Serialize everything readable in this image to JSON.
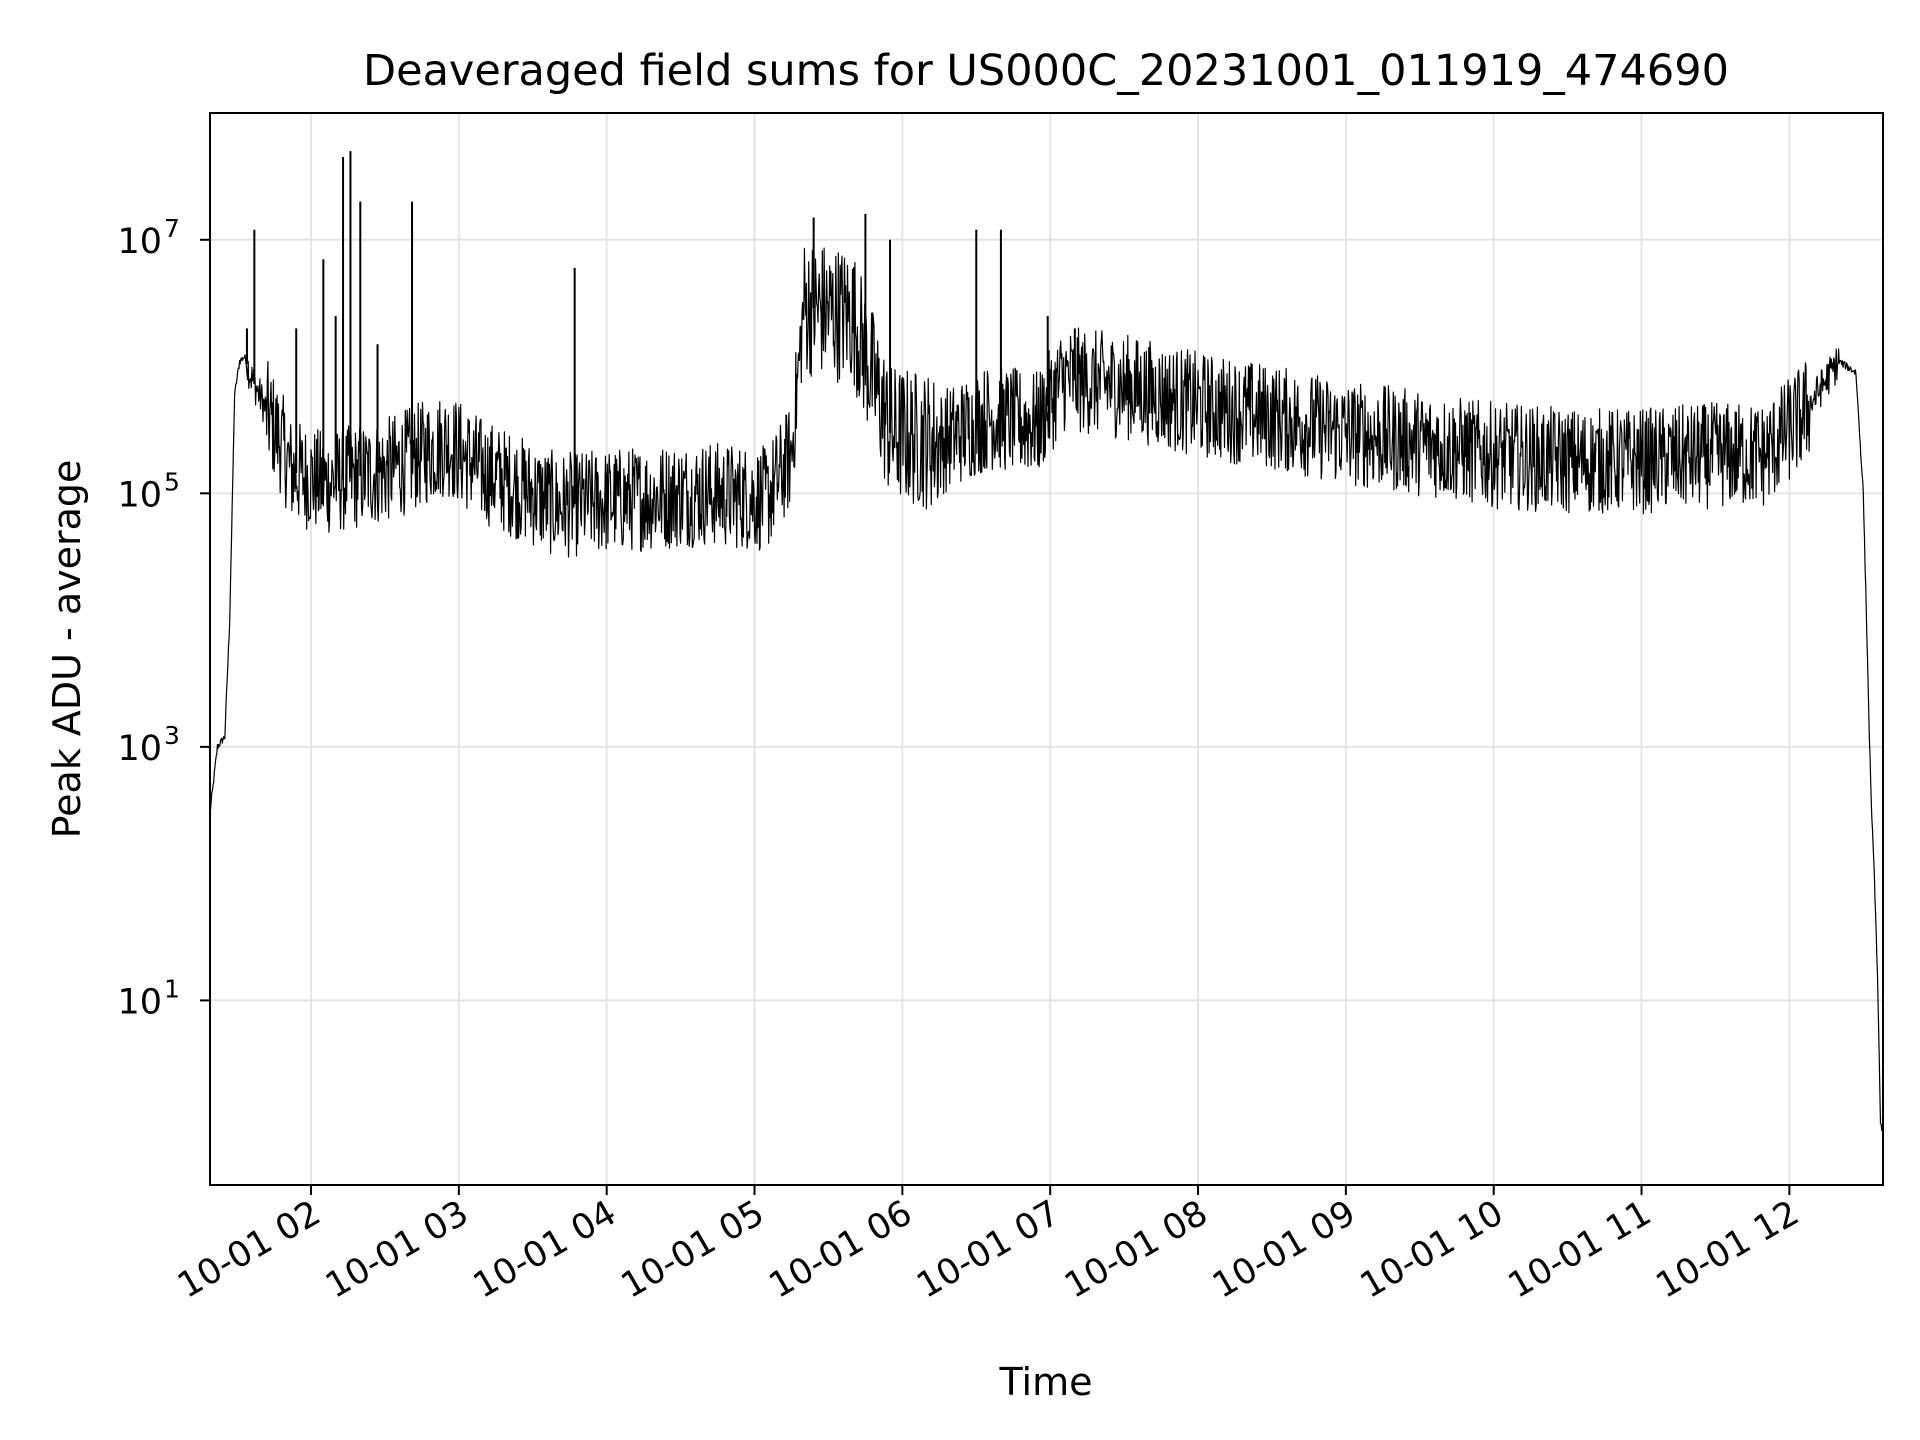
{
  "chart_data": {
    "type": "line",
    "title": "Deaveraged field sums for US000C_20231001_011919_474690",
    "xlabel": "Time",
    "ylabel": "Peak ADU - average",
    "yscale": "log",
    "xlim": [
      "2023-10-01 01:19",
      "2023-10-01 12:38"
    ],
    "ylim": [
      0.35,
      100000000
    ],
    "grid": true,
    "line_color": "#000000",
    "x_ticks": [
      "10-01 02",
      "10-01 03",
      "10-01 04",
      "10-01 05",
      "10-01 06",
      "10-01 07",
      "10-01 08",
      "10-01 09",
      "10-01 10",
      "10-01 11",
      "10-01 12"
    ],
    "x_tick_values": [
      "2023-10-01 02:00",
      "2023-10-01 03:00",
      "2023-10-01 04:00",
      "2023-10-01 05:00",
      "2023-10-01 06:00",
      "2023-10-01 07:00",
      "2023-10-01 08:00",
      "2023-10-01 09:00",
      "2023-10-01 10:00",
      "2023-10-01 11:00",
      "2023-10-01 12:00"
    ],
    "y_ticks": [
      {
        "base": "10",
        "exp": "1",
        "value": 10
      },
      {
        "base": "10",
        "exp": "3",
        "value": 1000
      },
      {
        "base": "10",
        "exp": "5",
        "value": 100000
      },
      {
        "base": "10",
        "exp": "7",
        "value": 10000000
      }
    ],
    "series": [
      {
        "x": [
          "2023-10-01 01:19",
          "2023-10-01 01:22",
          "2023-10-01 01:25",
          "2023-10-01 01:27",
          "2023-10-01 01:29",
          "2023-10-01 01:31",
          "2023-10-01 01:33",
          "2023-10-01 01:36",
          "2023-10-01 01:39",
          "2023-10-01 01:43",
          "2023-10-01 01:48",
          "2023-10-01 01:52",
          "2023-10-01 02:05",
          "2023-10-01 02:30",
          "2023-10-01 02:55",
          "2023-10-01 03:10",
          "2023-10-01 03:40",
          "2023-10-01 04:10",
          "2023-10-01 04:40",
          "2023-10-01 05:05",
          "2023-10-01 05:15",
          "2023-10-01 05:20",
          "2023-10-01 05:40",
          "2023-10-01 05:55",
          "2023-10-01 06:15",
          "2023-10-01 06:35",
          "2023-10-01 06:55",
          "2023-10-01 07:05",
          "2023-10-01 07:30",
          "2023-10-01 08:00",
          "2023-10-01 08:30",
          "2023-10-01 09:00",
          "2023-10-01 09:30",
          "2023-10-01 10:00",
          "2023-10-01 10:30",
          "2023-10-01 11:00",
          "2023-10-01 11:30",
          "2023-10-01 11:50",
          "2023-10-01 12:05",
          "2023-10-01 12:20",
          "2023-10-01 12:27",
          "2023-10-01 12:30",
          "2023-10-01 12:33",
          "2023-10-01 12:35",
          "2023-10-01 12:36",
          "2023-10-01 12:37"
        ],
        "y": [
          300,
          1000,
          1200,
          10000,
          600000,
          1100000,
          1200000,
          800000,
          600000,
          400000,
          250000,
          150000,
          120000,
          150000,
          250000,
          150000,
          80000,
          90000,
          100000,
          90000,
          200000,
          3000000,
          2500000,
          300000,
          250000,
          400000,
          350000,
          800000,
          700000,
          500000,
          400000,
          300000,
          250000,
          200000,
          180000,
          180000,
          200000,
          200000,
          400000,
          1100000,
          900000,
          100000,
          500,
          50,
          10,
          1
        ],
        "spikes": [
          {
            "x": "2023-10-01 01:34",
            "y": 2000000
          },
          {
            "x": "2023-10-01 01:37",
            "y": 12000000
          },
          {
            "x": "2023-10-01 01:54",
            "y": 2000000
          },
          {
            "x": "2023-10-01 02:05",
            "y": 7000000
          },
          {
            "x": "2023-10-01 02:10",
            "y": 2500000
          },
          {
            "x": "2023-10-01 02:13",
            "y": 45000000
          },
          {
            "x": "2023-10-01 02:16",
            "y": 50000000
          },
          {
            "x": "2023-10-01 02:20",
            "y": 20000000
          },
          {
            "x": "2023-10-01 02:27",
            "y": 1500000
          },
          {
            "x": "2023-10-01 02:41",
            "y": 20000000
          },
          {
            "x": "2023-10-01 03:47",
            "y": 6000000
          },
          {
            "x": "2023-10-01 05:24",
            "y": 15000000
          },
          {
            "x": "2023-10-01 05:45",
            "y": 16000000
          },
          {
            "x": "2023-10-01 05:55",
            "y": 10000000
          },
          {
            "x": "2023-10-01 06:30",
            "y": 12000000
          },
          {
            "x": "2023-10-01 06:40",
            "y": 12000000
          },
          {
            "x": "2023-10-01 06:59",
            "y": 2500000
          },
          {
            "x": "2023-10-01 07:10",
            "y": 2000000
          }
        ]
      }
    ]
  }
}
